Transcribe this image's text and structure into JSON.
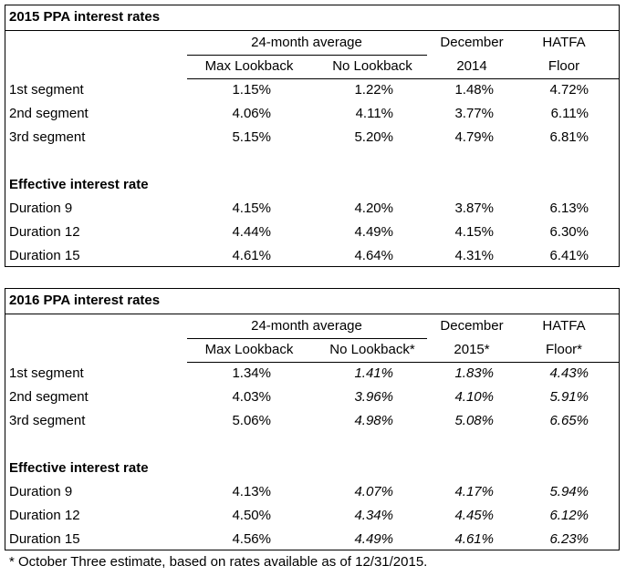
{
  "tables": [
    {
      "title": "2015 PPA interest rates",
      "header_row1": [
        "24-month average",
        "December",
        "HATFA"
      ],
      "header_row2": [
        "Max Lookback",
        "No Lookback",
        "2014",
        "Floor"
      ],
      "segments": [
        {
          "label": "1st segment",
          "values": [
            "1.15%",
            "1.22%",
            "1.48%",
            "4.72%"
          ]
        },
        {
          "label": "2nd segment",
          "values": [
            "4.06%",
            "4.11%",
            "3.77%",
            "6.11%"
          ]
        },
        {
          "label": "3rd segment",
          "values": [
            "5.15%",
            "5.20%",
            "4.79%",
            "6.81%"
          ]
        }
      ],
      "effective_title": "Effective interest rate",
      "effective": [
        {
          "label": "Duration 9",
          "values": [
            "4.15%",
            "4.20%",
            "3.87%",
            "6.13%"
          ]
        },
        {
          "label": "Duration 12",
          "values": [
            "4.44%",
            "4.49%",
            "4.15%",
            "6.30%"
          ]
        },
        {
          "label": "Duration 15",
          "values": [
            "4.61%",
            "4.64%",
            "4.31%",
            "6.41%"
          ]
        }
      ]
    },
    {
      "title": "2016 PPA interest rates",
      "header_row1": [
        "24-month average",
        "December",
        "HATFA"
      ],
      "header_row2": [
        "Max Lookback",
        "No Lookback*",
        "2015*",
        "Floor*"
      ],
      "segments": [
        {
          "label": "1st segment",
          "values": [
            "1.34%",
            "1.41%",
            "1.83%",
            "4.43%"
          ]
        },
        {
          "label": "2nd segment",
          "values": [
            "4.03%",
            "3.96%",
            "4.10%",
            "5.91%"
          ]
        },
        {
          "label": "3rd segment",
          "values": [
            "5.06%",
            "4.98%",
            "5.08%",
            "6.65%"
          ]
        }
      ],
      "effective_title": "Effective interest rate",
      "effective": [
        {
          "label": "Duration 9",
          "values": [
            "4.13%",
            "4.07%",
            "4.17%",
            "5.94%"
          ]
        },
        {
          "label": "Duration 12",
          "values": [
            "4.50%",
            "4.34%",
            "4.45%",
            "6.12%"
          ]
        },
        {
          "label": "Duration 15",
          "values": [
            "4.56%",
            "4.49%",
            "4.61%",
            "6.23%"
          ]
        }
      ]
    }
  ],
  "footnote": "* October Three estimate, based on rates available as of 12/31/2015."
}
